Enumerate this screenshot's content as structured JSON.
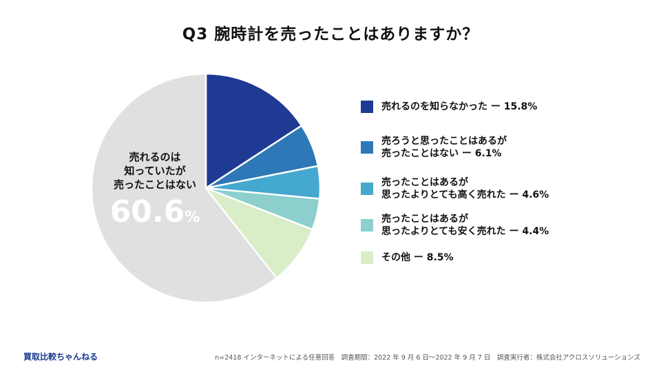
{
  "title": "Q3 腕時計を売ったことはありますか？",
  "chart_data": {
    "type": "pie",
    "slices": [
      {
        "label": "売れるのを知らなかった",
        "value": 15.8,
        "color": "#1f3a93"
      },
      {
        "label": "売ろうと思ったことはあるが 売ったことはない",
        "value": 6.1,
        "color": "#2e78b7"
      },
      {
        "label": "売ったことはあるが 思ったよりとても高く売れた",
        "value": 4.6,
        "color": "#45a8cf"
      },
      {
        "label": "売ったことはあるが 思ったよりとても安く売れた",
        "value": 4.4,
        "color": "#8ccfcc"
      },
      {
        "label": "その他",
        "value": 8.5,
        "color": "#d8edc8"
      },
      {
        "label": "売れるのは知っていたが売ったことはない",
        "value": 60.6,
        "color": "#e0e0e0"
      }
    ],
    "big_label": {
      "lines": [
        "売れるのは",
        "知っていたが",
        "売ったことはない"
      ],
      "value": "60.6",
      "unit": "%"
    },
    "legend": [
      {
        "lines": [
          "売れるのを知らなかった ー 15.8%"
        ],
        "color": "#1f3a93"
      },
      {
        "lines": [
          "売ろうと思ったことはあるが",
          "売ったことはない ー 6.1%"
        ],
        "color": "#2e78b7"
      },
      {
        "lines": [
          "売ったことはあるが",
          "思ったよりとても高く売れた ー 4.6%"
        ],
        "color": "#45a8cf"
      },
      {
        "lines": [
          "売ったことはあるが",
          "思ったよりとても安く売れた ー 4.4%"
        ],
        "color": "#8ccfcc"
      },
      {
        "lines": [
          "その他 ー 8.5%"
        ],
        "color": "#d8edc8"
      }
    ]
  },
  "footer": {
    "brand": "買取比較ちゃんねる",
    "note": "n=2418 インターネットによる任意回答　調査期間：2022 年 9 月 6 日〜2022 年 9 月 7 日　調査実行者：株式会社アクロスソリューションズ"
  }
}
